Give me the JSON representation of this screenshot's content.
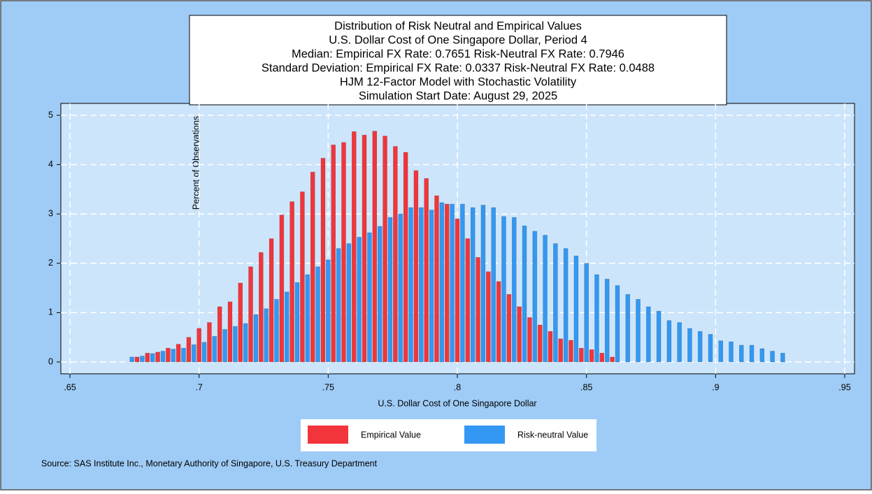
{
  "chart_data": {
    "type": "bar",
    "title": [
      "Distribution of Risk Neutral and Empirical Values",
      "U.S. Dollar Cost of One Singapore Dollar, Period 4",
      "Median: Empirical FX Rate:  0.7651   Risk-Neutral FX Rate:  0.7946",
      "Standard Deviation: Empirical FX Rate:  0.0337   Risk-Neutral FX Rate:  0.0488",
      "HJM 12-Factor Model with Stochastic Volatility",
      "Simulation Start Date: August 29, 2025"
    ],
    "x_label": "U.S. Dollar Cost of One Singapore Dollar",
    "y_label": "Percent of Observations",
    "source": "Source: SAS Institute Inc., Monetary Authority of Singapore, U.S. Treasury Department",
    "xlim": [
      0.65,
      0.95
    ],
    "xticks": [
      {
        "value": 0.65,
        "label": ".65"
      },
      {
        "value": 0.7,
        "label": ".7"
      },
      {
        "value": 0.75,
        "label": ".75"
      },
      {
        "value": 0.8,
        "label": ".8"
      },
      {
        "value": 0.85,
        "label": ".85"
      },
      {
        "value": 0.9,
        "label": ".9"
      },
      {
        "value": 0.95,
        "label": ".95"
      }
    ],
    "ylim": [
      0,
      5
    ],
    "yticks": [
      0,
      1,
      2,
      3,
      4,
      5
    ],
    "grid": true,
    "series": [
      {
        "name": "Empirical Value",
        "color": "#f2353a",
        "x": [
          0.676,
          0.68,
          0.684,
          0.688,
          0.692,
          0.696,
          0.7,
          0.704,
          0.708,
          0.712,
          0.716,
          0.72,
          0.724,
          0.728,
          0.732,
          0.736,
          0.74,
          0.744,
          0.748,
          0.752,
          0.756,
          0.76,
          0.764,
          0.768,
          0.772,
          0.776,
          0.78,
          0.784,
          0.788,
          0.792,
          0.796,
          0.8,
          0.804,
          0.808,
          0.812,
          0.816,
          0.82,
          0.824,
          0.828,
          0.832,
          0.836,
          0.84,
          0.844,
          0.848,
          0.852,
          0.856,
          0.86
        ],
        "values": [
          0.1,
          0.18,
          0.2,
          0.28,
          0.36,
          0.5,
          0.68,
          0.8,
          1.12,
          1.22,
          1.6,
          1.93,
          2.22,
          2.5,
          2.98,
          3.25,
          3.45,
          3.85,
          4.13,
          4.4,
          4.45,
          4.67,
          4.6,
          4.68,
          4.58,
          4.37,
          4.25,
          3.88,
          3.72,
          3.37,
          3.2,
          2.9,
          2.5,
          2.12,
          1.83,
          1.63,
          1.37,
          1.12,
          0.9,
          0.75,
          0.62,
          0.47,
          0.44,
          0.28,
          0.25,
          0.18,
          0.1
        ]
      },
      {
        "name": "Risk-neutral Value",
        "color": "#3398f3",
        "x": [
          0.674,
          0.678,
          0.682,
          0.686,
          0.69,
          0.694,
          0.698,
          0.702,
          0.706,
          0.71,
          0.714,
          0.718,
          0.722,
          0.726,
          0.73,
          0.734,
          0.738,
          0.742,
          0.746,
          0.75,
          0.754,
          0.758,
          0.762,
          0.766,
          0.77,
          0.774,
          0.778,
          0.782,
          0.786,
          0.79,
          0.794,
          0.798,
          0.802,
          0.806,
          0.81,
          0.814,
          0.818,
          0.822,
          0.826,
          0.83,
          0.834,
          0.838,
          0.842,
          0.846,
          0.85,
          0.854,
          0.858,
          0.862,
          0.866,
          0.87,
          0.874,
          0.878,
          0.882,
          0.886,
          0.89,
          0.894,
          0.898,
          0.902,
          0.906,
          0.91,
          0.914,
          0.918,
          0.922,
          0.926
        ],
        "values": [
          0.1,
          0.12,
          0.17,
          0.22,
          0.26,
          0.28,
          0.35,
          0.4,
          0.52,
          0.66,
          0.72,
          0.78,
          0.96,
          1.08,
          1.27,
          1.42,
          1.61,
          1.77,
          1.93,
          2.07,
          2.3,
          2.4,
          2.53,
          2.62,
          2.75,
          2.93,
          3.0,
          3.13,
          3.13,
          3.08,
          3.23,
          3.2,
          3.2,
          3.13,
          3.18,
          3.13,
          2.95,
          2.93,
          2.76,
          2.65,
          2.57,
          2.4,
          2.3,
          2.15,
          2.0,
          1.77,
          1.68,
          1.55,
          1.37,
          1.27,
          1.12,
          1.03,
          0.84,
          0.8,
          0.68,
          0.62,
          0.56,
          0.43,
          0.41,
          0.34,
          0.34,
          0.27,
          0.22,
          0.18
        ]
      }
    ]
  }
}
